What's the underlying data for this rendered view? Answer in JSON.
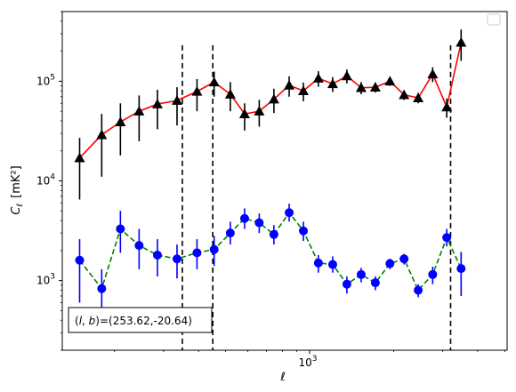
{
  "chart_data": {
    "type": "scatter",
    "xscale": "log",
    "yscale": "log",
    "xlim": [
      130,
      5100
    ],
    "ylim": [
      200,
      500000
    ],
    "xlabel": "ℓ",
    "ylabel_main": "C",
    "ylabel_sub": "ℓ",
    "ylabel_unit": "[mK²]",
    "x_major_ticks": [
      1000
    ],
    "x_major_tick_base": "10",
    "x_major_tick_exp": "3",
    "y_major_ticks": [
      {
        "value": 1000,
        "base": "10",
        "exp": "3"
      },
      {
        "value": 10000,
        "base": "10",
        "exp": "4"
      },
      {
        "value": 100000,
        "base": "10",
        "exp": "5"
      }
    ],
    "annotation": {
      "text_prefix": "(",
      "text_l": "l",
      "text_comma": ", ",
      "text_b": "b",
      "text_suffix": ")=(253.62,-20.64)"
    },
    "vlines_x": [
      350,
      450,
      3200
    ],
    "series": [
      {
        "marker": "triangle",
        "color": "#000000",
        "line_color": "#ff0000",
        "line_style": "solid",
        "points": [
          {
            "x": 150,
            "y": 17000,
            "lo": 6500,
            "hi": 27000
          },
          {
            "x": 180,
            "y": 29000,
            "lo": 11000,
            "hi": 47000
          },
          {
            "x": 210,
            "y": 39000,
            "lo": 18000,
            "hi": 60000
          },
          {
            "x": 245,
            "y": 50000,
            "lo": 25000,
            "hi": 72000
          },
          {
            "x": 285,
            "y": 59000,
            "lo": 33000,
            "hi": 82000
          },
          {
            "x": 335,
            "y": 64000,
            "lo": 36000,
            "hi": 87000
          },
          {
            "x": 395,
            "y": 79000,
            "lo": 50000,
            "hi": 105000
          },
          {
            "x": 455,
            "y": 98000,
            "lo": 70000,
            "hi": 125000
          },
          {
            "x": 520,
            "y": 74000,
            "lo": 50000,
            "hi": 98000
          },
          {
            "x": 585,
            "y": 47000,
            "lo": 32000,
            "hi": 60000
          },
          {
            "x": 660,
            "y": 50000,
            "lo": 35000,
            "hi": 65000
          },
          {
            "x": 745,
            "y": 66000,
            "lo": 48000,
            "hi": 84000
          },
          {
            "x": 845,
            "y": 91000,
            "lo": 70000,
            "hi": 112000
          },
          {
            "x": 950,
            "y": 80000,
            "lo": 63000,
            "hi": 97000
          },
          {
            "x": 1075,
            "y": 107000,
            "lo": 88000,
            "hi": 126000
          },
          {
            "x": 1210,
            "y": 94000,
            "lo": 78000,
            "hi": 110000
          },
          {
            "x": 1360,
            "y": 113000,
            "lo": 95000,
            "hi": 131000
          },
          {
            "x": 1530,
            "y": 86000,
            "lo": 74000,
            "hi": 98000
          },
          {
            "x": 1720,
            "y": 87000,
            "lo": 77000,
            "hi": 97000
          },
          {
            "x": 1940,
            "y": 100000,
            "lo": 90000,
            "hi": 110000
          },
          {
            "x": 2180,
            "y": 73000,
            "lo": 65000,
            "hi": 81000
          },
          {
            "x": 2450,
            "y": 68000,
            "lo": 60000,
            "hi": 76000
          },
          {
            "x": 2760,
            "y": 118000,
            "lo": 98000,
            "hi": 138000
          },
          {
            "x": 3100,
            "y": 55000,
            "lo": 43000,
            "hi": 67000
          },
          {
            "x": 3490,
            "y": 245000,
            "lo": 160000,
            "hi": 330000
          }
        ]
      },
      {
        "marker": "circle",
        "color": "#0000ff",
        "line_color": "#008000",
        "line_style": "dashed",
        "points": [
          {
            "x": 150,
            "y": 1600,
            "lo": 600,
            "hi": 2600
          },
          {
            "x": 180,
            "y": 830,
            "lo": 400,
            "hi": 1300
          },
          {
            "x": 210,
            "y": 3300,
            "lo": 1900,
            "hi": 5000
          },
          {
            "x": 245,
            "y": 2250,
            "lo": 1300,
            "hi": 3300
          },
          {
            "x": 285,
            "y": 1800,
            "lo": 1100,
            "hi": 2600
          },
          {
            "x": 335,
            "y": 1650,
            "lo": 1050,
            "hi": 2300
          },
          {
            "x": 395,
            "y": 1900,
            "lo": 1300,
            "hi": 2600
          },
          {
            "x": 455,
            "y": 2050,
            "lo": 1400,
            "hi": 2800
          },
          {
            "x": 520,
            "y": 3000,
            "lo": 2300,
            "hi": 3900
          },
          {
            "x": 585,
            "y": 4200,
            "lo": 3300,
            "hi": 5300
          },
          {
            "x": 660,
            "y": 3800,
            "lo": 3000,
            "hi": 4700
          },
          {
            "x": 745,
            "y": 2900,
            "lo": 2300,
            "hi": 3600
          },
          {
            "x": 845,
            "y": 4800,
            "lo": 3900,
            "hi": 5900
          },
          {
            "x": 950,
            "y": 3150,
            "lo": 2500,
            "hi": 3900
          },
          {
            "x": 1075,
            "y": 1500,
            "lo": 1200,
            "hi": 1800
          },
          {
            "x": 1210,
            "y": 1450,
            "lo": 1200,
            "hi": 1750
          },
          {
            "x": 1360,
            "y": 920,
            "lo": 740,
            "hi": 1100
          },
          {
            "x": 1530,
            "y": 1150,
            "lo": 960,
            "hi": 1340
          },
          {
            "x": 1720,
            "y": 950,
            "lo": 800,
            "hi": 1100
          },
          {
            "x": 1940,
            "y": 1480,
            "lo": 1300,
            "hi": 1660
          },
          {
            "x": 2180,
            "y": 1650,
            "lo": 1450,
            "hi": 1850
          },
          {
            "x": 2450,
            "y": 800,
            "lo": 680,
            "hi": 920
          },
          {
            "x": 2760,
            "y": 1150,
            "lo": 920,
            "hi": 1380
          },
          {
            "x": 3100,
            "y": 2700,
            "lo": 2200,
            "hi": 3300
          },
          {
            "x": 3490,
            "y": 1320,
            "lo": 700,
            "hi": 1940
          }
        ]
      }
    ],
    "legend": "top-right",
    "grid": false
  }
}
